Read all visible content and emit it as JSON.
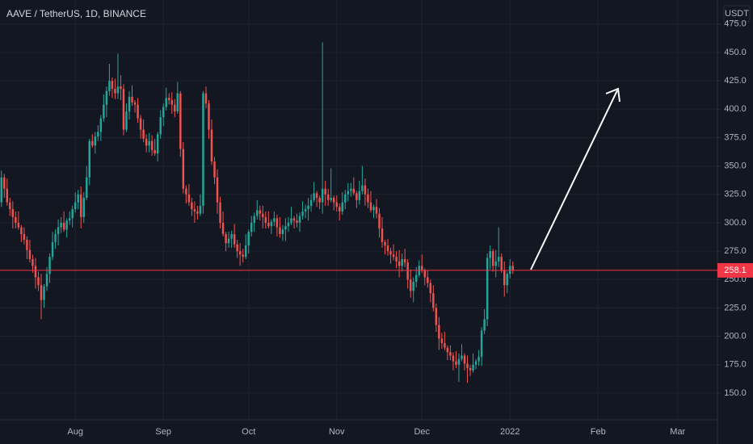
{
  "chart_data": {
    "type": "candlestick",
    "title": "AAVE / TetherUS, 1D, BINANCE",
    "currency": "USDT",
    "open": [
      318,
      340,
      330,
      318,
      312,
      305,
      300,
      296,
      290,
      285,
      276,
      268,
      262,
      252,
      245,
      232,
      244,
      255,
      270,
      283,
      290,
      296,
      300,
      294,
      302,
      304,
      312,
      318,
      325,
      305,
      322,
      340,
      372,
      368,
      376,
      380,
      392,
      404,
      416,
      425,
      418,
      414,
      420,
      418,
      382,
      398,
      411,
      406,
      404,
      392,
      382,
      374,
      368,
      372,
      364,
      361,
      378,
      393,
      402,
      410,
      408,
      404,
      398,
      414,
      365,
      330,
      325,
      318,
      312,
      310,
      308,
      315,
      414,
      405,
      382,
      354,
      340,
      318,
      300,
      290,
      282,
      286,
      290,
      281,
      275,
      272,
      270,
      280,
      292,
      300,
      306,
      311,
      308,
      305,
      300,
      297,
      301,
      304,
      296,
      290,
      294,
      297,
      300,
      304,
      302,
      300,
      306,
      310,
      312,
      315,
      320,
      326,
      322,
      318,
      330,
      325,
      320,
      322,
      318,
      314,
      310,
      318,
      325,
      328,
      330,
      326,
      320,
      328,
      333,
      325,
      318,
      311,
      314,
      308,
      295,
      283,
      280,
      275,
      272,
      270,
      266,
      262,
      268,
      265,
      250,
      240,
      248,
      254,
      262,
      258,
      252,
      247,
      238,
      225,
      210,
      198,
      194,
      190,
      186,
      183,
      178,
      175,
      180,
      183,
      176,
      172,
      170,
      175,
      178,
      182,
      205,
      215,
      269,
      275,
      262,
      266,
      270,
      258,
      245,
      255,
      262
    ],
    "high": [
      346,
      343,
      339,
      322,
      319,
      310,
      310,
      298,
      296,
      288,
      285,
      272,
      269,
      257,
      255,
      246,
      261,
      273,
      292,
      294,
      303,
      305,
      310,
      304,
      310,
      315,
      327,
      329,
      332,
      327,
      350,
      374,
      378,
      380,
      386,
      395,
      413,
      420,
      440,
      428,
      427,
      449,
      430,
      422,
      405,
      416,
      421,
      408,
      410,
      395,
      391,
      378,
      379,
      377,
      374,
      380,
      399,
      405,
      419,
      414,
      415,
      409,
      424,
      416,
      371,
      333,
      334,
      322,
      319,
      315,
      325,
      416,
      420,
      408,
      391,
      358,
      347,
      323,
      310,
      292,
      292,
      293,
      299,
      285,
      282,
      277,
      290,
      294,
      306,
      309,
      320,
      315,
      315,
      310,
      310,
      303,
      310,
      307,
      305,
      298,
      304,
      305,
      314,
      306,
      308,
      309,
      319,
      316,
      322,
      325,
      336,
      328,
      324,
      459,
      337,
      330,
      348,
      324,
      324,
      317,
      327,
      329,
      335,
      335,
      340,
      328,
      337,
      350,
      339,
      330,
      328,
      316,
      321,
      313,
      305,
      285,
      286,
      278,
      281,
      275,
      276,
      273,
      277,
      268,
      259,
      252,
      261,
      267,
      272,
      260,
      258,
      250,
      245,
      229,
      217,
      203,
      204,
      192,
      192,
      186,
      187,
      185,
      193,
      185,
      183,
      175,
      185,
      180,
      188,
      208,
      224,
      273,
      280,
      277,
      276,
      296,
      273,
      266,
      257,
      268,
      266
    ],
    "low": [
      314,
      322,
      315,
      306,
      295,
      295,
      294,
      283,
      281,
      268,
      265,
      256,
      242,
      240,
      215,
      225,
      240,
      247,
      267,
      277,
      280,
      291,
      292,
      287,
      298,
      296,
      309,
      312,
      295,
      300,
      320,
      333,
      366,
      361,
      372,
      372,
      389,
      393,
      412,
      410,
      409,
      409,
      408,
      377,
      380,
      391,
      403,
      397,
      388,
      374,
      371,
      362,
      362,
      359,
      359,
      354,
      374,
      385,
      399,
      404,
      396,
      393,
      396,
      358,
      326,
      317,
      315,
      306,
      300,
      303,
      306,
      308,
      401,
      374,
      351,
      334,
      308,
      295,
      288,
      275,
      278,
      278,
      278,
      269,
      262,
      265,
      268,
      273,
      288,
      292,
      303,
      302,
      295,
      295,
      295,
      290,
      297,
      288,
      287,
      284,
      284,
      292,
      298,
      295,
      296,
      292,
      303,
      304,
      302,
      310,
      318,
      314,
      312,
      308,
      315,
      315,
      318,
      311,
      310,
      302,
      307,
      312,
      319,
      323,
      324,
      313,
      316,
      325,
      315,
      313,
      309,
      304,
      304,
      287,
      278,
      272,
      271,
      264,
      267,
      260,
      252,
      257,
      261,
      242,
      234,
      230,
      243,
      252,
      256,
      245,
      243,
      230,
      222,
      204,
      188,
      189,
      188,
      179,
      179,
      170,
      172,
      160,
      178,
      170,
      159,
      165,
      168,
      171,
      174,
      174,
      202,
      209,
      259,
      257,
      252,
      261,
      256,
      235,
      238,
      251,
      255
    ],
    "close": [
      340,
      330,
      318,
      312,
      305,
      300,
      296,
      290,
      285,
      276,
      268,
      262,
      252,
      245,
      232,
      244,
      255,
      270,
      283,
      290,
      296,
      300,
      294,
      302,
      304,
      312,
      318,
      325,
      305,
      322,
      340,
      372,
      368,
      376,
      380,
      392,
      404,
      416,
      425,
      418,
      414,
      420,
      418,
      382,
      398,
      411,
      406,
      404,
      392,
      382,
      374,
      368,
      372,
      364,
      361,
      378,
      393,
      402,
      410,
      408,
      404,
      398,
      414,
      365,
      330,
      325,
      318,
      312,
      310,
      308,
      315,
      414,
      405,
      382,
      354,
      340,
      318,
      300,
      290,
      282,
      286,
      290,
      281,
      275,
      272,
      270,
      280,
      292,
      300,
      306,
      311,
      308,
      305,
      300,
      297,
      301,
      304,
      296,
      290,
      294,
      297,
      300,
      304,
      302,
      300,
      306,
      310,
      312,
      315,
      320,
      326,
      322,
      318,
      330,
      325,
      320,
      322,
      318,
      314,
      310,
      318,
      325,
      328,
      330,
      326,
      320,
      328,
      333,
      325,
      318,
      311,
      314,
      308,
      295,
      283,
      280,
      275,
      272,
      270,
      266,
      262,
      268,
      265,
      250,
      240,
      248,
      254,
      262,
      258,
      252,
      247,
      238,
      225,
      210,
      198,
      194,
      190,
      186,
      183,
      178,
      175,
      180,
      183,
      176,
      172,
      170,
      175,
      178,
      182,
      205,
      215,
      269,
      275,
      262,
      266,
      270,
      258,
      245,
      255,
      262,
      258.1
    ],
    "up_color": "#26a69a",
    "down_color": "#ef5350",
    "last_price_color": "#f23645",
    "xlim": [
      -0.5,
      252
    ],
    "ylim": [
      126.5,
      496.2
    ],
    "xticks": [
      {
        "value": 26,
        "label": "Aug"
      },
      {
        "value": 57,
        "label": "Sep"
      },
      {
        "value": 87,
        "label": "Oct"
      },
      {
        "value": 118,
        "label": "Nov"
      },
      {
        "value": 148,
        "label": "Dec"
      },
      {
        "value": 179,
        "label": "2022"
      },
      {
        "value": 210,
        "label": "Feb"
      },
      {
        "value": 238,
        "label": "Mar"
      }
    ],
    "yticks": [
      {
        "value": 150,
        "label": "150.0"
      },
      {
        "value": 175,
        "label": "175.0"
      },
      {
        "value": 200,
        "label": "200.0"
      },
      {
        "value": 225,
        "label": "225.0"
      },
      {
        "value": 250,
        "label": "250.0"
      },
      {
        "value": 275,
        "label": "275.0"
      },
      {
        "value": 300,
        "label": "300.0"
      },
      {
        "value": 325,
        "label": "325.0"
      },
      {
        "value": 350,
        "label": "350.0"
      },
      {
        "value": 375,
        "label": "375.0"
      },
      {
        "value": 400,
        "label": "400.0"
      },
      {
        "value": 425,
        "label": "425.0"
      },
      {
        "value": 450,
        "label": "450.0"
      },
      {
        "value": 475,
        "label": "475.0"
      }
    ],
    "grid": true
  }
}
